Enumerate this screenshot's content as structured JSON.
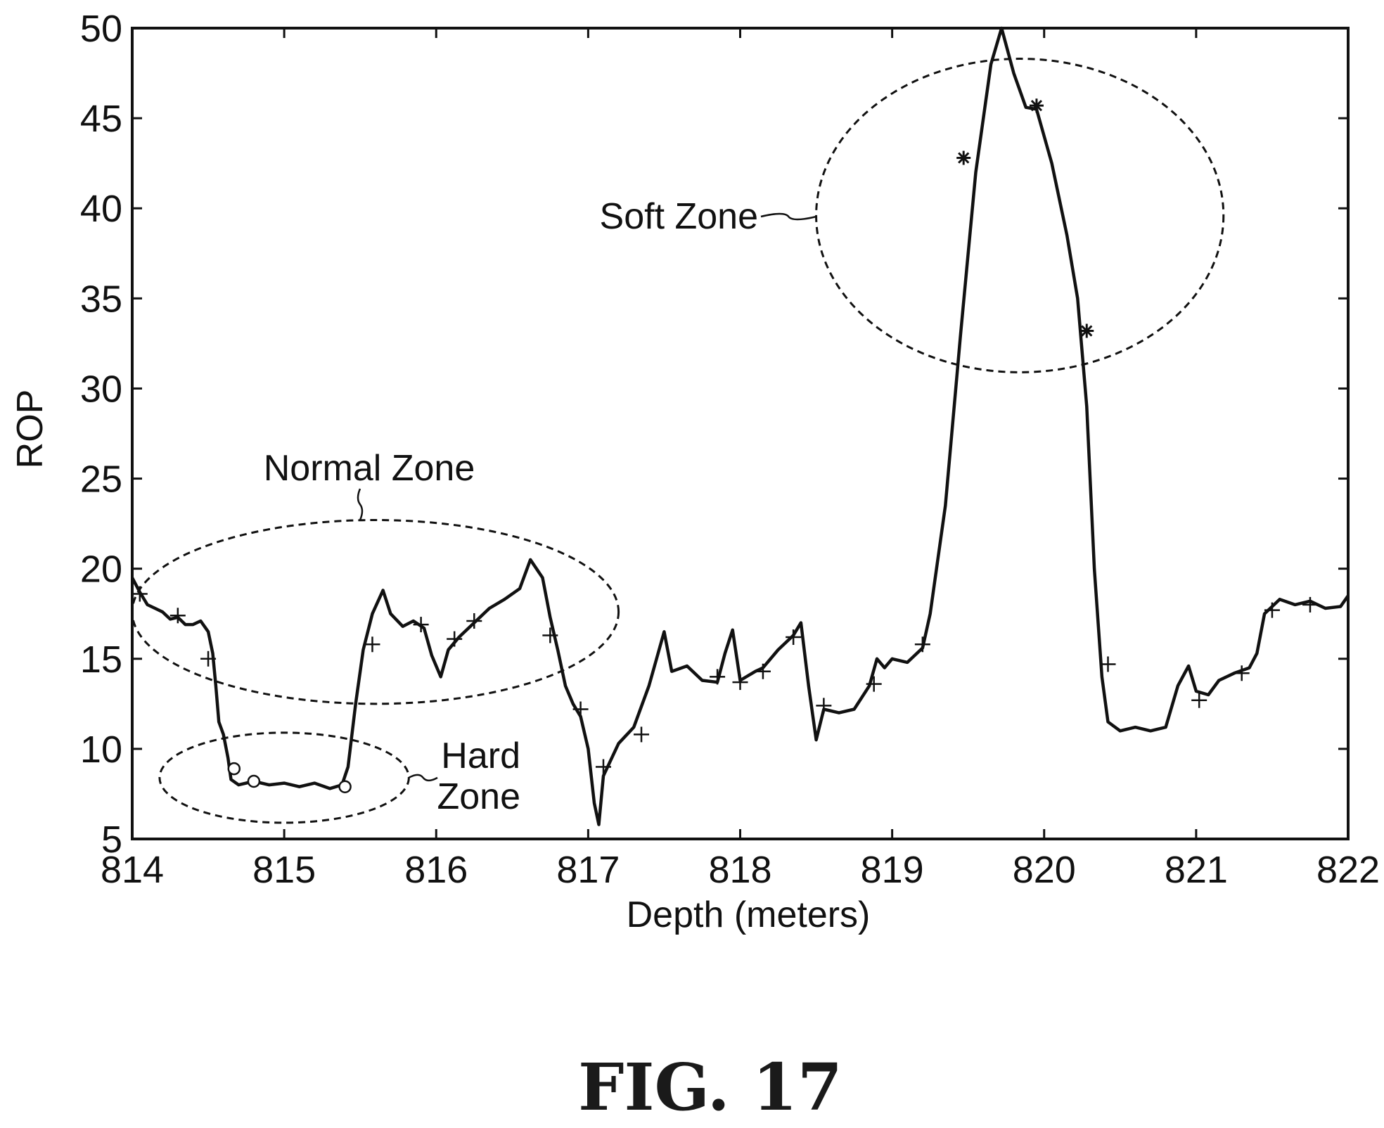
{
  "chart_data": {
    "type": "line",
    "xlabel": "Depth (meters)",
    "ylabel": "ROP",
    "xlim": [
      814,
      822
    ],
    "ylim": [
      5,
      50
    ],
    "x_ticks": [
      814,
      815,
      816,
      817,
      818,
      819,
      820,
      821,
      822
    ],
    "y_ticks": [
      5,
      10,
      15,
      20,
      25,
      30,
      35,
      40,
      45,
      50
    ],
    "grid": false,
    "series": [
      {
        "line_color": "#111111",
        "points": [
          [
            814.0,
            19.5
          ],
          [
            814.05,
            18.7
          ],
          [
            814.1,
            18.0
          ],
          [
            814.15,
            17.8
          ],
          [
            814.2,
            17.6
          ],
          [
            814.25,
            17.2
          ],
          [
            814.3,
            17.3
          ],
          [
            814.35,
            16.9
          ],
          [
            814.4,
            16.9
          ],
          [
            814.45,
            17.1
          ],
          [
            814.5,
            16.5
          ],
          [
            814.53,
            15.3
          ],
          [
            814.55,
            13.5
          ],
          [
            814.57,
            11.5
          ],
          [
            814.6,
            10.8
          ],
          [
            814.63,
            9.5
          ],
          [
            814.65,
            8.3
          ],
          [
            814.7,
            8.0
          ],
          [
            814.8,
            8.2
          ],
          [
            814.9,
            8.0
          ],
          [
            815.0,
            8.1
          ],
          [
            815.1,
            7.9
          ],
          [
            815.2,
            8.1
          ],
          [
            815.3,
            7.8
          ],
          [
            815.38,
            8.0
          ],
          [
            815.42,
            9.0
          ],
          [
            815.47,
            12.5
          ],
          [
            815.52,
            15.5
          ],
          [
            815.58,
            17.5
          ],
          [
            815.65,
            18.8
          ],
          [
            815.7,
            17.5
          ],
          [
            815.78,
            16.8
          ],
          [
            815.85,
            17.1
          ],
          [
            815.92,
            16.7
          ],
          [
            815.97,
            15.2
          ],
          [
            816.03,
            14.0
          ],
          [
            816.08,
            15.5
          ],
          [
            816.15,
            16.2
          ],
          [
            816.25,
            17.0
          ],
          [
            816.35,
            17.8
          ],
          [
            816.45,
            18.3
          ],
          [
            816.55,
            18.9
          ],
          [
            816.62,
            20.5
          ],
          [
            816.7,
            19.5
          ],
          [
            816.75,
            17.3
          ],
          [
            816.8,
            15.5
          ],
          [
            816.85,
            13.5
          ],
          [
            816.9,
            12.5
          ],
          [
            816.95,
            11.8
          ],
          [
            817.0,
            10.0
          ],
          [
            817.04,
            7.0
          ],
          [
            817.07,
            5.8
          ],
          [
            817.1,
            8.5
          ],
          [
            817.2,
            10.3
          ],
          [
            817.3,
            11.2
          ],
          [
            817.4,
            13.5
          ],
          [
            817.45,
            15.0
          ],
          [
            817.5,
            16.5
          ],
          [
            817.55,
            14.3
          ],
          [
            817.65,
            14.6
          ],
          [
            817.75,
            13.8
          ],
          [
            817.85,
            13.7
          ],
          [
            817.9,
            15.3
          ],
          [
            817.95,
            16.6
          ],
          [
            818.0,
            13.8
          ],
          [
            818.1,
            14.3
          ],
          [
            818.15,
            14.5
          ],
          [
            818.25,
            15.5
          ],
          [
            818.35,
            16.3
          ],
          [
            818.4,
            17.0
          ],
          [
            818.45,
            13.5
          ],
          [
            818.5,
            10.5
          ],
          [
            818.55,
            12.2
          ],
          [
            818.65,
            12.0
          ],
          [
            818.75,
            12.2
          ],
          [
            818.85,
            13.5
          ],
          [
            818.9,
            15.0
          ],
          [
            818.95,
            14.5
          ],
          [
            819.0,
            15.0
          ],
          [
            819.1,
            14.8
          ],
          [
            819.2,
            15.6
          ],
          [
            819.25,
            17.5
          ],
          [
            819.35,
            23.5
          ],
          [
            819.45,
            33.0
          ],
          [
            819.55,
            42.0
          ],
          [
            819.65,
            48.0
          ],
          [
            819.72,
            50.0
          ],
          [
            819.8,
            47.5
          ],
          [
            819.88,
            45.6
          ],
          [
            819.95,
            45.5
          ],
          [
            820.05,
            42.5
          ],
          [
            820.15,
            38.5
          ],
          [
            820.22,
            35.0
          ],
          [
            820.28,
            29.0
          ],
          [
            820.33,
            20.0
          ],
          [
            820.38,
            14.0
          ],
          [
            820.42,
            11.5
          ],
          [
            820.5,
            11.0
          ],
          [
            820.6,
            11.2
          ],
          [
            820.7,
            11.0
          ],
          [
            820.8,
            11.2
          ],
          [
            820.88,
            13.5
          ],
          [
            820.95,
            14.6
          ],
          [
            821.0,
            13.2
          ],
          [
            821.08,
            13.0
          ],
          [
            821.15,
            13.8
          ],
          [
            821.25,
            14.2
          ],
          [
            821.35,
            14.5
          ],
          [
            821.4,
            15.3
          ],
          [
            821.45,
            17.5
          ],
          [
            821.55,
            18.3
          ],
          [
            821.65,
            18.0
          ],
          [
            821.75,
            18.2
          ],
          [
            821.85,
            17.8
          ],
          [
            821.95,
            17.9
          ],
          [
            822.0,
            18.5
          ]
        ]
      }
    ],
    "markers": [
      {
        "symbol": "+",
        "points": [
          [
            814.05,
            18.6
          ],
          [
            814.3,
            17.4
          ],
          [
            814.5,
            15.0
          ],
          [
            815.58,
            15.8
          ],
          [
            815.9,
            16.9
          ],
          [
            816.12,
            16.1
          ],
          [
            816.25,
            17.1
          ],
          [
            816.75,
            16.3
          ],
          [
            816.95,
            12.2
          ],
          [
            817.1,
            9.0
          ],
          [
            817.35,
            10.8
          ],
          [
            817.85,
            14.0
          ],
          [
            818.0,
            13.7
          ],
          [
            818.15,
            14.3
          ],
          [
            818.35,
            16.2
          ],
          [
            818.55,
            12.4
          ],
          [
            818.88,
            13.6
          ],
          [
            819.2,
            15.8
          ],
          [
            820.42,
            14.7
          ],
          [
            821.02,
            12.7
          ],
          [
            821.3,
            14.2
          ],
          [
            821.5,
            17.7
          ],
          [
            821.75,
            18.0
          ]
        ]
      },
      {
        "symbol": "o",
        "points": [
          [
            814.67,
            8.9
          ],
          [
            814.8,
            8.2
          ],
          [
            815.4,
            7.9
          ]
        ]
      },
      {
        "symbol": "*",
        "points": [
          [
            819.47,
            42.8
          ],
          [
            819.95,
            45.7
          ],
          [
            820.28,
            33.2
          ]
        ]
      }
    ],
    "annotations": [
      {
        "text": "Soft Zone",
        "ellipse": {
          "cx": 819.84,
          "cy": 39.6,
          "rx": 1.34,
          "ry": 8.7
        }
      },
      {
        "text": "Normal Zone",
        "ellipse": {
          "cx": 815.6,
          "cy": 17.6,
          "rx": 1.6,
          "ry": 5.1
        }
      },
      {
        "text": [
          "Hard",
          "Zone"
        ],
        "ellipse": {
          "cx": 815.0,
          "cy": 8.4,
          "rx": 0.82,
          "ry": 2.5
        }
      }
    ]
  },
  "caption": "FIG. 17"
}
